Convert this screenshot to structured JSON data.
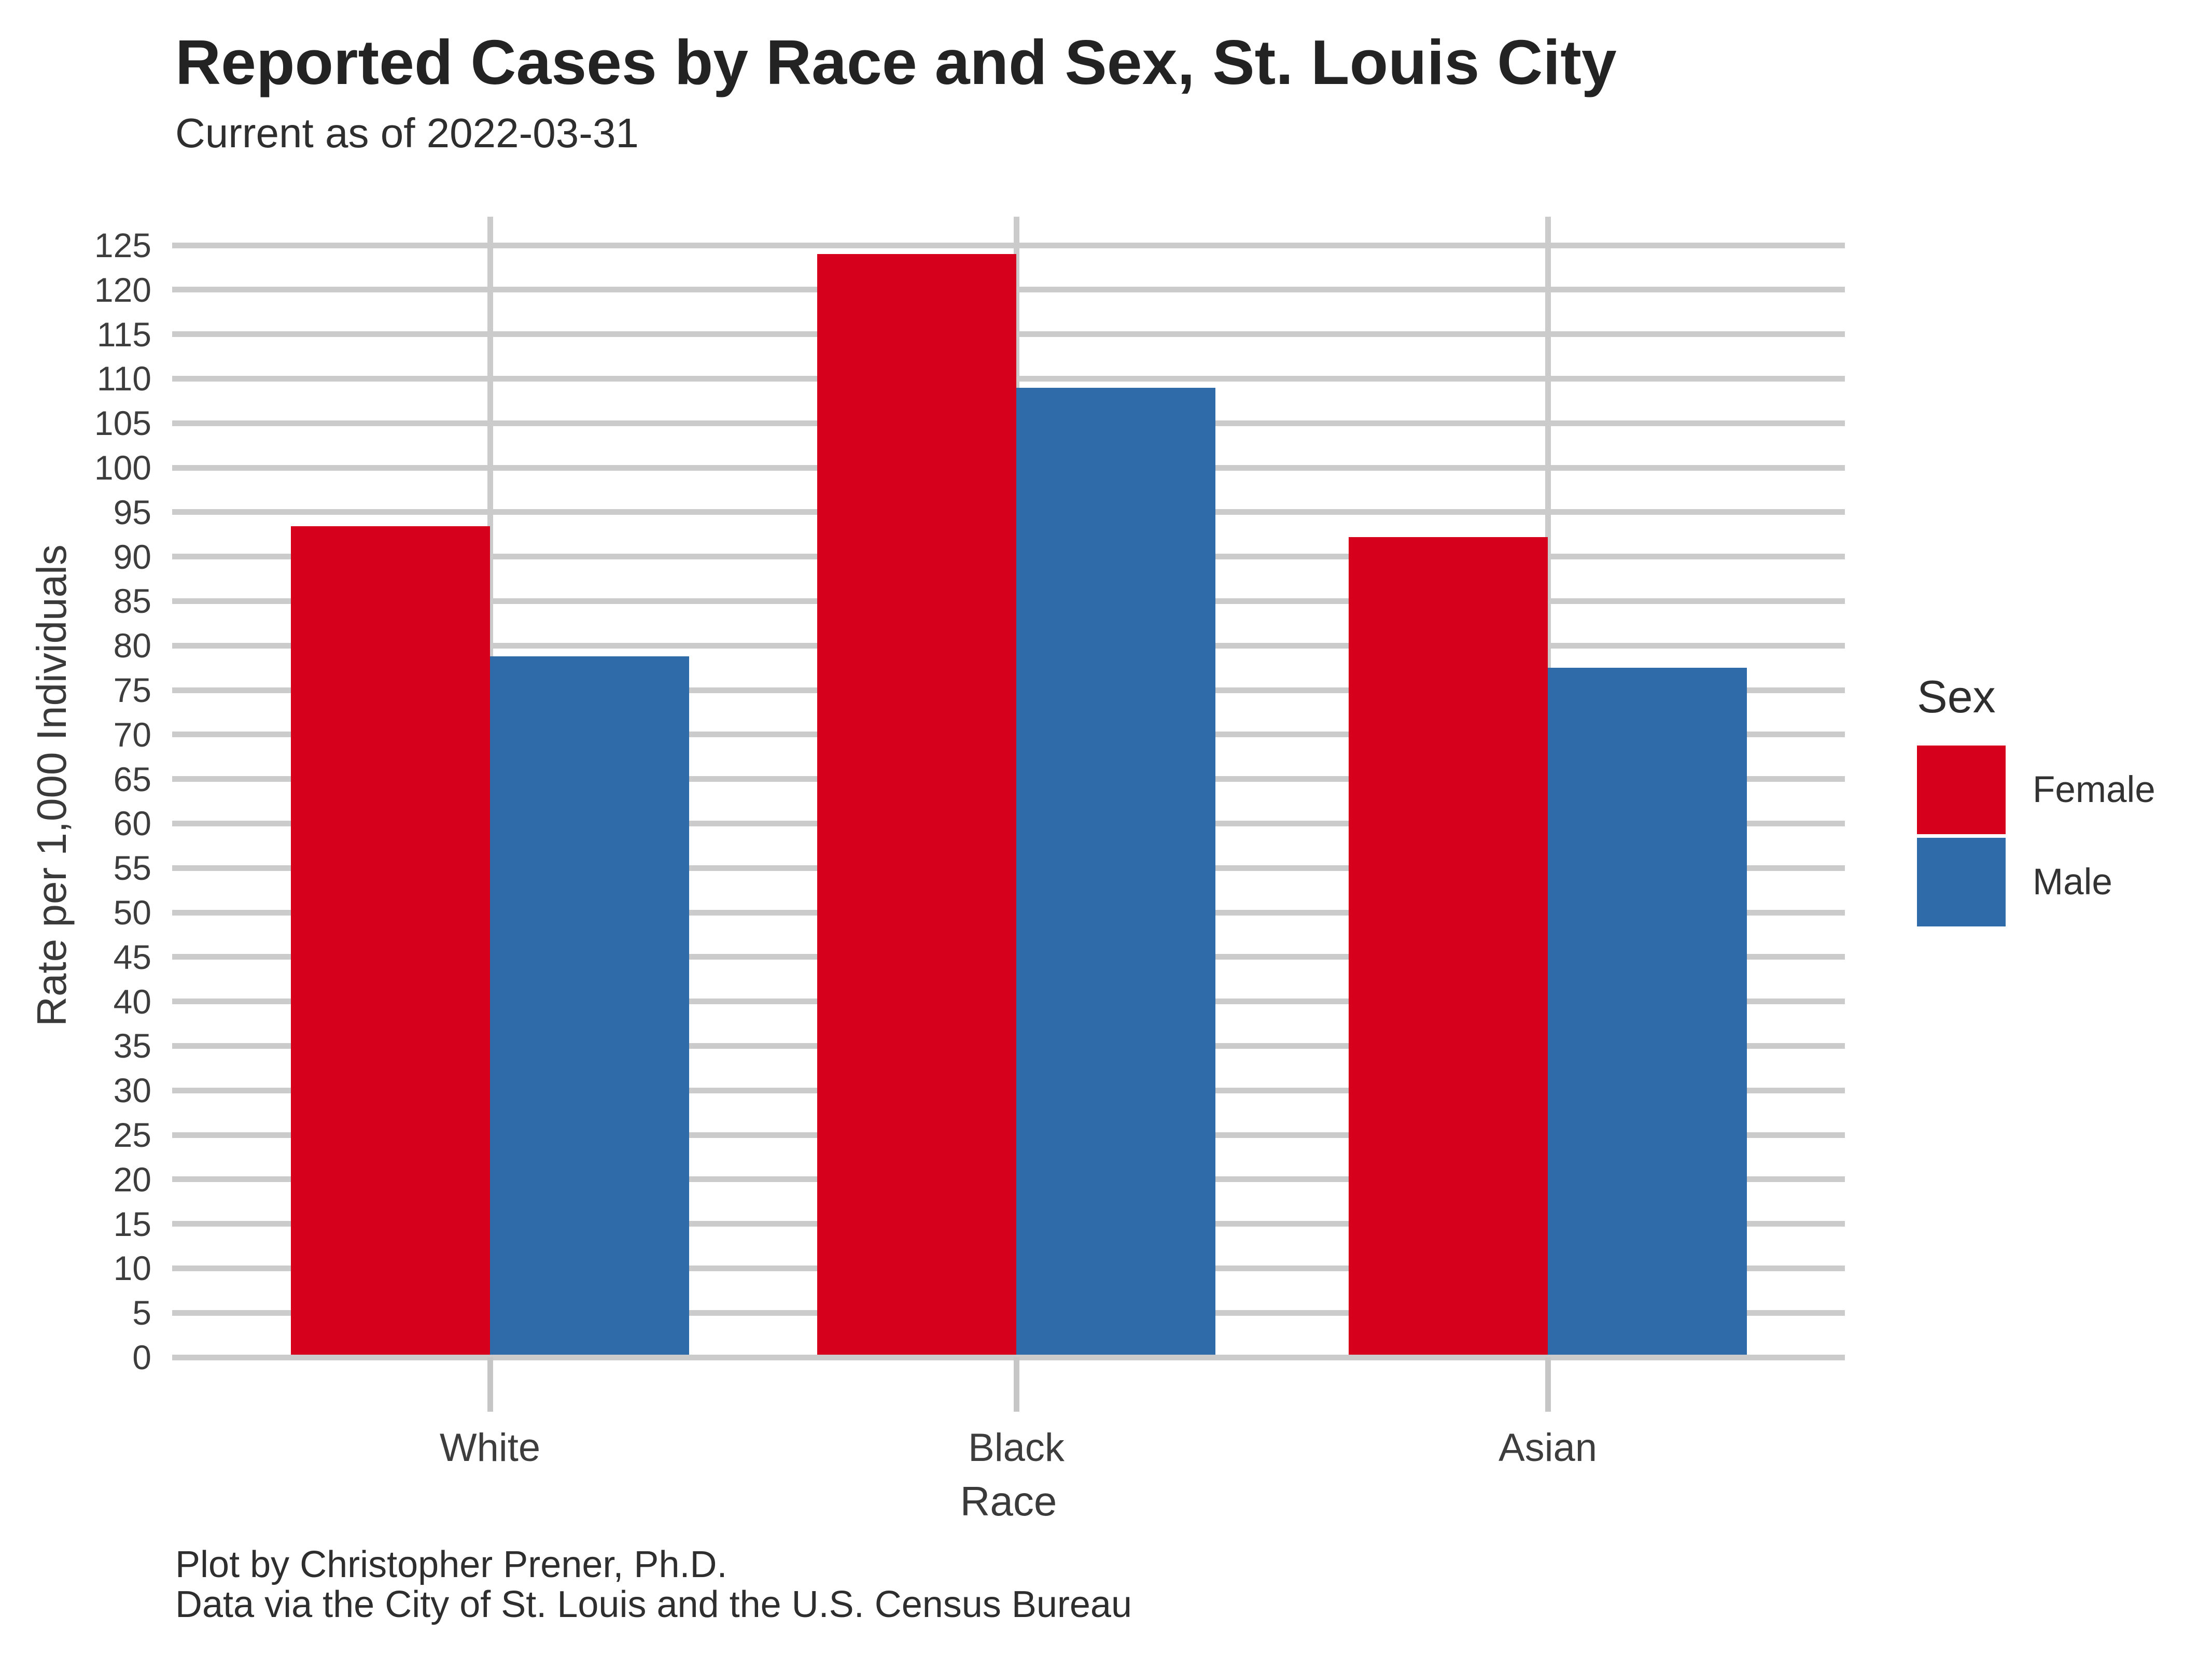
{
  "header": {
    "title": "Reported Cases by Race and Sex, St. Louis City",
    "subtitle": "Current as of 2022-03-31"
  },
  "legend": {
    "title": "Sex"
  },
  "footer": {
    "line1": "Plot by Christopher Prener, Ph.D.",
    "line2": "Data via the City of St. Louis and the U.S. Census Bureau"
  },
  "chart_data": {
    "type": "bar",
    "title": "Reported Cases by Race and Sex, St. Louis City",
    "subtitle": "Current as of 2022-03-31",
    "categories": [
      "White",
      "Black",
      "Asian"
    ],
    "series": [
      {
        "name": "Female",
        "color": "#D6001C",
        "values": [
          93.4,
          124.0,
          92.2
        ]
      },
      {
        "name": "Male",
        "color": "#2F6BA9",
        "values": [
          78.8,
          109.0,
          77.5
        ]
      }
    ],
    "xlabel": "Race",
    "ylabel": "Rate per 1,000 Individuals",
    "ylim": [
      0,
      125
    ],
    "ytick_step": 5,
    "grid": true,
    "legend_position": "right",
    "gridline_color": "#cbcbcb",
    "background": "#ffffff"
  }
}
